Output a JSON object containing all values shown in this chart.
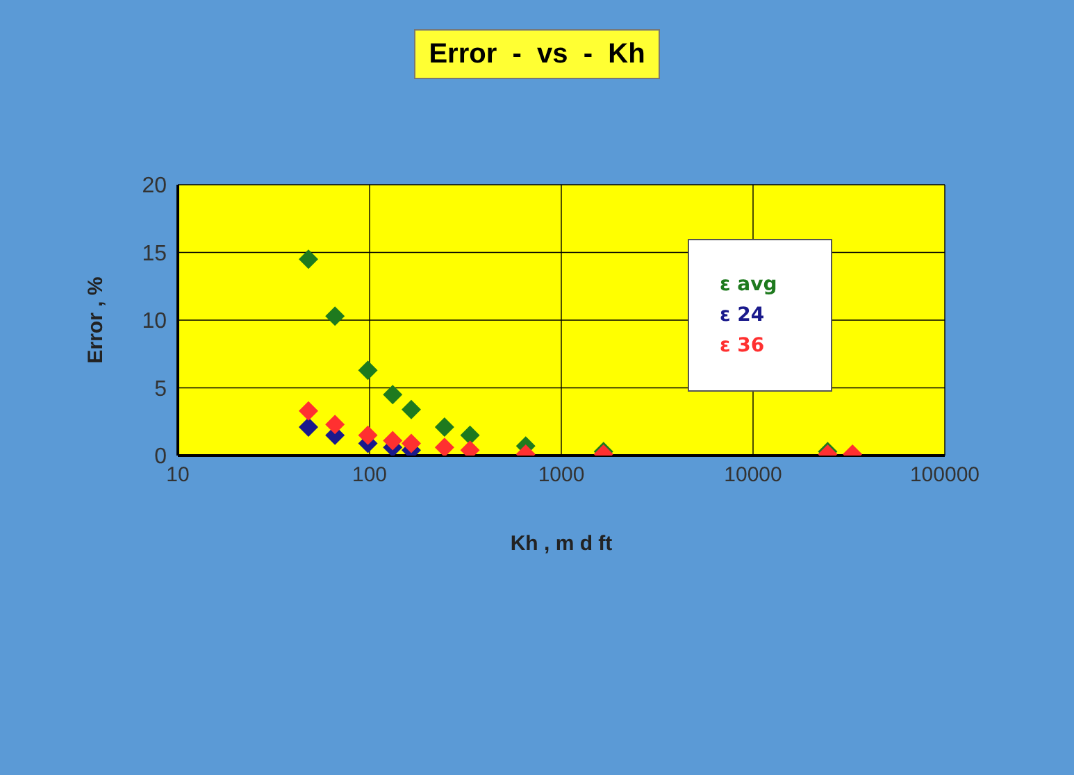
{
  "chart_data": {
    "type": "scatter",
    "title": "Error  -  vs  -  Kh",
    "xlabel": "Kh , m d ft",
    "ylabel": "Error , %",
    "x": [
      48,
      66,
      98,
      132,
      165,
      246,
      334,
      652,
      1660,
      24500,
      33000
    ],
    "series": [
      {
        "name": "ε avg",
        "color": "#1e7a1e",
        "values": [
          14.5,
          10.3,
          6.3,
          4.5,
          3.4,
          2.1,
          1.5,
          0.7,
          0.3,
          0.3,
          null
        ]
      },
      {
        "name": "ε 24",
        "color": "#1a1a8c",
        "values": [
          2.1,
          1.5,
          0.9,
          0.6,
          0.4,
          null,
          null,
          null,
          null,
          null,
          null
        ]
      },
      {
        "name": "ε 36",
        "color": "#ff3030",
        "values": [
          3.3,
          2.3,
          1.5,
          1.1,
          0.9,
          0.6,
          0.4,
          0.1,
          0.1,
          0.1,
          0.1
        ]
      }
    ],
    "log": "x",
    "xlim": [
      10,
      100000
    ],
    "xticks": [
      10,
      100,
      1000,
      10000,
      100000
    ],
    "ylim": [
      0,
      20
    ],
    "yticks": [
      0,
      5,
      10,
      15,
      20
    ],
    "grid": true,
    "legend": "top right",
    "marker": "diamond"
  }
}
